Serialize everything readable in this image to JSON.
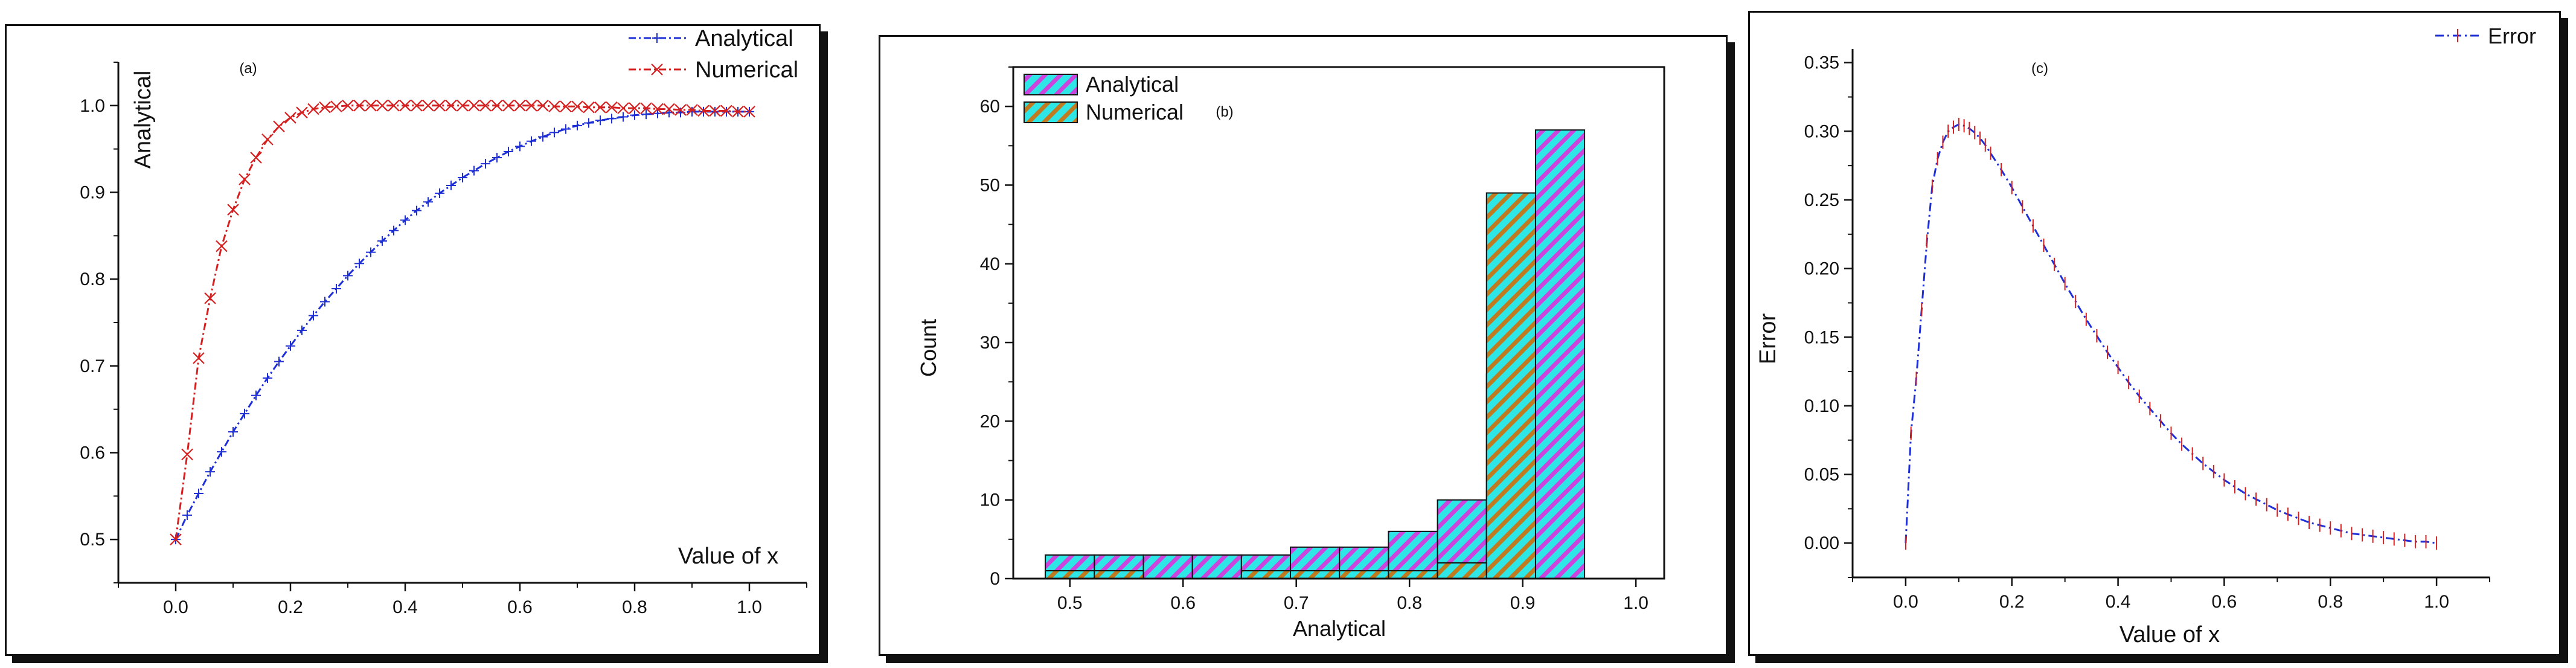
{
  "chart_data": [
    {
      "type": "line",
      "panel_label": "(a)",
      "xlabel": "Value of x",
      "ylabel": "Analytical",
      "xlim": [
        -0.1,
        1.1
      ],
      "ylim": [
        0.45,
        1.05
      ],
      "x_ticks": [
        "0.0",
        "0.2",
        "0.4",
        "0.6",
        "0.8",
        "1.0"
      ],
      "y_ticks": [
        "0.5",
        "0.6",
        "0.7",
        "0.8",
        "0.9",
        "1.0"
      ],
      "legend_position": "top-right",
      "series": [
        {
          "name": "Analytical",
          "color": "#1f2fd6",
          "marker": "plus",
          "x": [
            0,
            0.02,
            0.04,
            0.06,
            0.08,
            0.1,
            0.12,
            0.14,
            0.16,
            0.18,
            0.2,
            0.22,
            0.24,
            0.26,
            0.28,
            0.3,
            0.32,
            0.34,
            0.36,
            0.38,
            0.4,
            0.42,
            0.44,
            0.46,
            0.48,
            0.5,
            0.52,
            0.54,
            0.56,
            0.58,
            0.6,
            0.62,
            0.64,
            0.66,
            0.68,
            0.7,
            0.72,
            0.74,
            0.76,
            0.78,
            0.8,
            0.82,
            0.84,
            0.86,
            0.88,
            0.9,
            0.92,
            0.94,
            0.96,
            0.98,
            1.0
          ],
          "y": [
            0.5,
            0.528,
            0.553,
            0.578,
            0.601,
            0.624,
            0.645,
            0.666,
            0.686,
            0.705,
            0.723,
            0.741,
            0.758,
            0.774,
            0.789,
            0.804,
            0.818,
            0.831,
            0.844,
            0.856,
            0.868,
            0.879,
            0.889,
            0.899,
            0.908,
            0.917,
            0.925,
            0.933,
            0.94,
            0.947,
            0.953,
            0.959,
            0.964,
            0.969,
            0.973,
            0.977,
            0.98,
            0.983,
            0.985,
            0.987,
            0.989,
            0.99,
            0.991,
            0.992,
            0.992,
            0.993,
            0.993,
            0.993,
            0.993,
            0.993,
            0.993
          ]
        },
        {
          "name": "Numerical",
          "color": "#d42020",
          "marker": "cross",
          "x": [
            0,
            0.02,
            0.04,
            0.06,
            0.08,
            0.1,
            0.12,
            0.14,
            0.16,
            0.18,
            0.2,
            0.22,
            0.24,
            0.26,
            0.28,
            0.3,
            0.32,
            0.34,
            0.36,
            0.38,
            0.4,
            0.42,
            0.44,
            0.46,
            0.48,
            0.5,
            0.52,
            0.54,
            0.56,
            0.58,
            0.6,
            0.62,
            0.64,
            0.66,
            0.68,
            0.7,
            0.72,
            0.74,
            0.76,
            0.78,
            0.8,
            0.82,
            0.84,
            0.86,
            0.88,
            0.9,
            0.92,
            0.94,
            0.96,
            0.98,
            1.0
          ],
          "y": [
            0.5,
            0.598,
            0.709,
            0.778,
            0.838,
            0.88,
            0.915,
            0.94,
            0.961,
            0.976,
            0.986,
            0.992,
            0.996,
            0.998,
            0.999,
            1.0,
            1.0,
            1.0,
            1.0,
            1.0,
            1.0,
            1.0,
            1.0,
            1.0,
            1.0,
            1.0,
            1.0,
            1.0,
            1.0,
            1.0,
            1.0,
            1.0,
            1.0,
            0.999,
            0.999,
            0.999,
            0.998,
            0.998,
            0.998,
            0.997,
            0.997,
            0.997,
            0.996,
            0.996,
            0.995,
            0.995,
            0.994,
            0.994,
            0.994,
            0.993,
            0.993
          ]
        }
      ]
    },
    {
      "type": "bar",
      "panel_label": "(b)",
      "xlabel": "Analytical",
      "ylabel": "Count",
      "xlim": [
        0.45,
        1.025
      ],
      "ylim": [
        0,
        65
      ],
      "x_ticks": [
        "0.5",
        "0.6",
        "0.7",
        "0.8",
        "0.9",
        "1.0"
      ],
      "y_ticks": [
        "0",
        "10",
        "20",
        "30",
        "40",
        "50",
        "60"
      ],
      "legend_position": "top-left",
      "bin_width": 0.0433,
      "bins": [
        0.5,
        0.5433,
        0.5866,
        0.6299,
        0.6732,
        0.7165,
        0.7598,
        0.8031,
        0.8464,
        0.8897,
        0.933,
        0.9763
      ],
      "series": [
        {
          "name": "Analytical",
          "color": "#2ee6e6",
          "hatch_color": "#cc44dd",
          "values": [
            3,
            3,
            3,
            3,
            3,
            4,
            4,
            6,
            10,
            26,
            57,
            0
          ]
        },
        {
          "name": "Numerical",
          "color": "#2ee6e6",
          "hatch_color": "#c07a20",
          "values": [
            1,
            1,
            0,
            0,
            1,
            1,
            1,
            1,
            2,
            49,
            0,
            0
          ]
        }
      ]
    },
    {
      "type": "line",
      "panel_label": "(c)",
      "xlabel": "Value of x",
      "ylabel": "Error",
      "xlim": [
        -0.1,
        1.1
      ],
      "ylim": [
        -0.025,
        0.36
      ],
      "x_ticks": [
        "0.0",
        "0.2",
        "0.4",
        "0.6",
        "0.8",
        "1.0"
      ],
      "y_ticks": [
        "0.00",
        "0.05",
        "0.10",
        "0.15",
        "0.20",
        "0.25",
        "0.30",
        "0.35"
      ],
      "legend_position": "top-right",
      "series": [
        {
          "name": "Error",
          "color": "#1f2fd6",
          "marker_color": "#d42020",
          "x": [
            0,
            0.01,
            0.02,
            0.03,
            0.04,
            0.05,
            0.06,
            0.07,
            0.08,
            0.09,
            0.1,
            0.11,
            0.12,
            0.13,
            0.14,
            0.15,
            0.16,
            0.18,
            0.2,
            0.22,
            0.24,
            0.26,
            0.28,
            0.3,
            0.32,
            0.34,
            0.36,
            0.38,
            0.4,
            0.42,
            0.44,
            0.46,
            0.48,
            0.5,
            0.52,
            0.54,
            0.56,
            0.58,
            0.6,
            0.62,
            0.64,
            0.66,
            0.68,
            0.7,
            0.72,
            0.74,
            0.76,
            0.78,
            0.8,
            0.82,
            0.84,
            0.86,
            0.88,
            0.9,
            0.92,
            0.94,
            0.96,
            0.98,
            1.0
          ],
          "y": [
            0.0,
            0.08,
            0.12,
            0.17,
            0.22,
            0.26,
            0.28,
            0.292,
            0.3,
            0.303,
            0.305,
            0.304,
            0.302,
            0.299,
            0.295,
            0.29,
            0.284,
            0.272,
            0.259,
            0.245,
            0.231,
            0.217,
            0.203,
            0.189,
            0.176,
            0.163,
            0.151,
            0.139,
            0.128,
            0.117,
            0.107,
            0.098,
            0.089,
            0.08,
            0.072,
            0.065,
            0.058,
            0.052,
            0.046,
            0.041,
            0.036,
            0.032,
            0.028,
            0.024,
            0.021,
            0.018,
            0.015,
            0.013,
            0.011,
            0.009,
            0.007,
            0.006,
            0.005,
            0.004,
            0.003,
            0.002,
            0.001,
            0.001,
            0.0
          ]
        }
      ]
    }
  ]
}
